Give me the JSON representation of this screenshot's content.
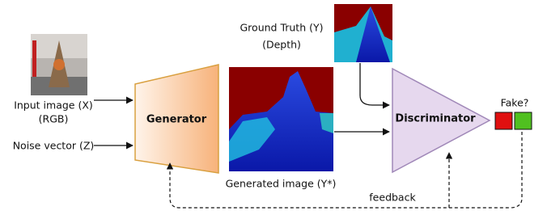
{
  "inputs": {
    "image_label": "Input image (X)",
    "image_sub": "(RGB)",
    "noise_label": "Noise vector (Z)"
  },
  "generator": {
    "label": "Generator"
  },
  "ground_truth": {
    "label": "Ground Truth (Y)",
    "sub": "(Depth)"
  },
  "generated": {
    "label": "Generated image (Y*)"
  },
  "discriminator": {
    "label": "Discriminator"
  },
  "output": {
    "label": "Fake?"
  },
  "feedback": {
    "label": "feedback"
  }
}
